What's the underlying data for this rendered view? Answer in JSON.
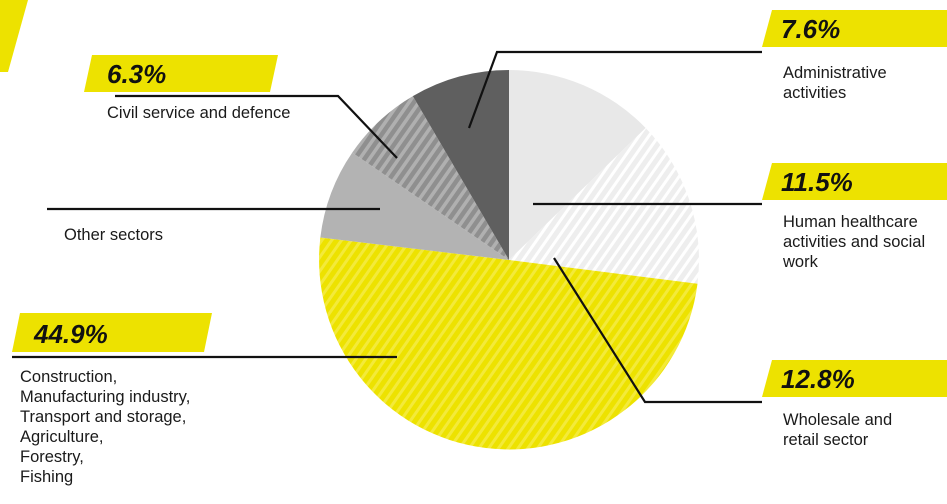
{
  "chart_data": {
    "type": "pie",
    "slices": [
      {
        "name": "Human healthcare activities and social work",
        "label_text": "Human healthcare\nactivities and social\nwork",
        "value": 11.5,
        "value_text": "11.5%",
        "color": "#e8e8e8",
        "pattern": "none"
      },
      {
        "name": "Wholesale and retail sector",
        "label_text": "Wholesale and\nretail sector",
        "value": 12.8,
        "value_text": "12.8%",
        "color": "#eeeeee",
        "pattern": "hatch-white"
      },
      {
        "name": "Construction, Manufacturing industry, Transport and storage, Agriculture, Forestry, Fishing",
        "label_text": "Construction,\nManufacturing industry,\nTransport and storage,\nAgriculture,\nForestry,\nFishing",
        "value": 44.9,
        "value_text": "44.9%",
        "color": "#ede200",
        "pattern": "hatch-yellow"
      },
      {
        "name": "Other sectors",
        "label_text": "Other sectors",
        "value": 6.9,
        "value_text": "",
        "color": "#b3b3b3",
        "pattern": "none"
      },
      {
        "name": "Civil service and defence",
        "label_text": "Civil service and defence",
        "value": 6.3,
        "value_text": "6.3%",
        "color": "#9a9a9a",
        "pattern": "hatch-grey"
      },
      {
        "name": "Administrative activities",
        "label_text": "Administrative\nactivities",
        "value": 7.6,
        "value_text": "7.6%",
        "color": "#5f5f5f",
        "pattern": "none"
      }
    ],
    "start_angle_deg": 0,
    "direction": "clockwise"
  },
  "colors": {
    "accent": "#ede200",
    "leader_line": "#111111"
  }
}
